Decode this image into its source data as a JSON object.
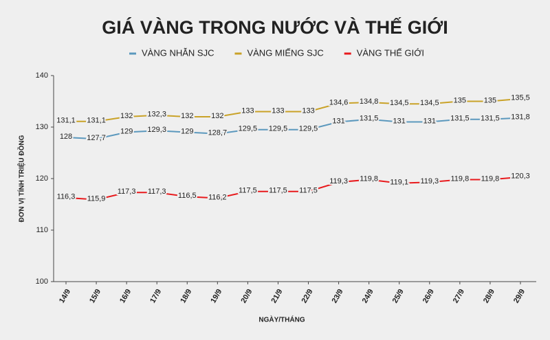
{
  "chart_data": {
    "type": "line",
    "title": "GIÁ VÀNG TRONG NƯỚC VÀ THẾ GIỚI",
    "x_label": "NGÀY/THÁNG",
    "y_label": "ĐƠN VỊ TÍNH TRIỆU ĐỒNG",
    "categories": [
      "14/9",
      "15/9",
      "16/9",
      "17/9",
      "18/9",
      "19/9",
      "20/9",
      "21/9",
      "22/9",
      "23/9",
      "24/9",
      "25/9",
      "26/9",
      "27/9",
      "28/9",
      "29/9"
    ],
    "series": [
      {
        "name": "VÀNG NHẪN SJC",
        "color": "#5b98bd",
        "values": [
          128,
          127.7,
          129,
          129.3,
          129,
          128.7,
          129.5,
          129.5,
          129.5,
          131,
          131.5,
          131,
          131,
          131.5,
          131.5,
          131.8
        ],
        "value_labels": [
          "128",
          "127,7",
          "129",
          "129,3",
          "129",
          "128,7",
          "129,5",
          "129,5",
          "129,5",
          "131",
          "131,5",
          "131",
          "131",
          "131,5",
          "131,5",
          "131,8"
        ]
      },
      {
        "name": "VÀNG MIẾNG SJC",
        "color": "#c9a227",
        "values": [
          131.1,
          131.1,
          132,
          132.3,
          132,
          132,
          133,
          133,
          133,
          134.6,
          134.8,
          134.5,
          134.5,
          135,
          135,
          135.5
        ],
        "value_labels": [
          "131,1",
          "131,1",
          "132",
          "132,3",
          "132",
          "132",
          "133",
          "133",
          "133",
          "134,6",
          "134,8",
          "134,5",
          "134,5",
          "135",
          "135",
          "135,5"
        ]
      },
      {
        "name": "VÀNG THẾ GIỚI",
        "color": "#e8191c",
        "values": [
          116.3,
          115.9,
          117.3,
          117.3,
          116.5,
          116.2,
          117.5,
          117.5,
          117.5,
          119.3,
          119.8,
          119.1,
          119.3,
          119.8,
          119.8,
          120.3
        ],
        "value_labels": [
          "116,3",
          "115,9",
          "117,3",
          "117,3",
          "116,5",
          "116,2",
          "117,5",
          "117,5",
          "117,5",
          "119,3",
          "119,8",
          "119,1",
          "119,3",
          "119,8",
          "119,8",
          "120,3"
        ]
      }
    ],
    "ylim": [
      100,
      140
    ],
    "yticks": [
      100,
      110,
      120,
      130,
      140
    ],
    "grid": false
  }
}
